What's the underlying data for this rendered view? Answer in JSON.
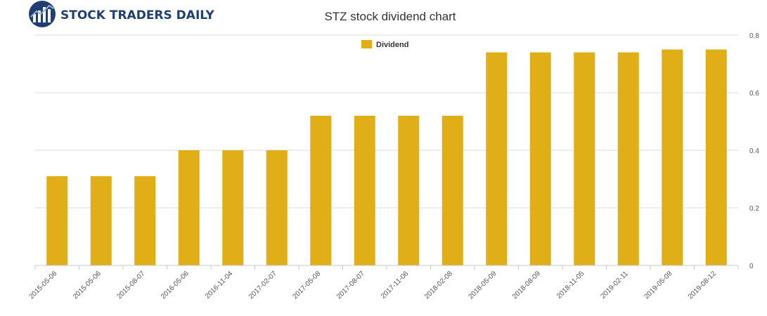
{
  "brand": {
    "name": "STOCK TRADERS DAILY",
    "color": "#1f3f72"
  },
  "chart_data": {
    "type": "bar",
    "title": "STZ stock dividend chart",
    "xlabel": "",
    "ylabel": "",
    "legend": {
      "position": "top-center",
      "entries": [
        "Dividend"
      ]
    },
    "categories": [
      "2015-05-06",
      "2015-05-06",
      "2015-08-07",
      "2016-05-06",
      "2016-11-04",
      "2017-02-07",
      "2017-05-08",
      "2017-08-07",
      "2017-11-06",
      "2018-02-08",
      "2018-05-09",
      "2018-08-09",
      "2018-11-05",
      "2019-02-11",
      "2019-05-09",
      "2019-08-12"
    ],
    "series": [
      {
        "name": "Dividend",
        "color": "#e0ae17",
        "values": [
          0.31,
          0.31,
          0.31,
          0.4,
          0.4,
          0.4,
          0.52,
          0.52,
          0.52,
          0.52,
          0.74,
          0.74,
          0.74,
          0.74,
          0.75,
          0.75
        ]
      }
    ],
    "ylim": [
      0,
      0.8
    ],
    "yticks": [
      "0",
      "0.2",
      "0.4",
      "0.6",
      "0.8"
    ],
    "ytick_values": [
      0,
      0.2,
      0.4,
      0.6,
      0.8
    ],
    "y_axis_side": "right",
    "grid": true
  }
}
